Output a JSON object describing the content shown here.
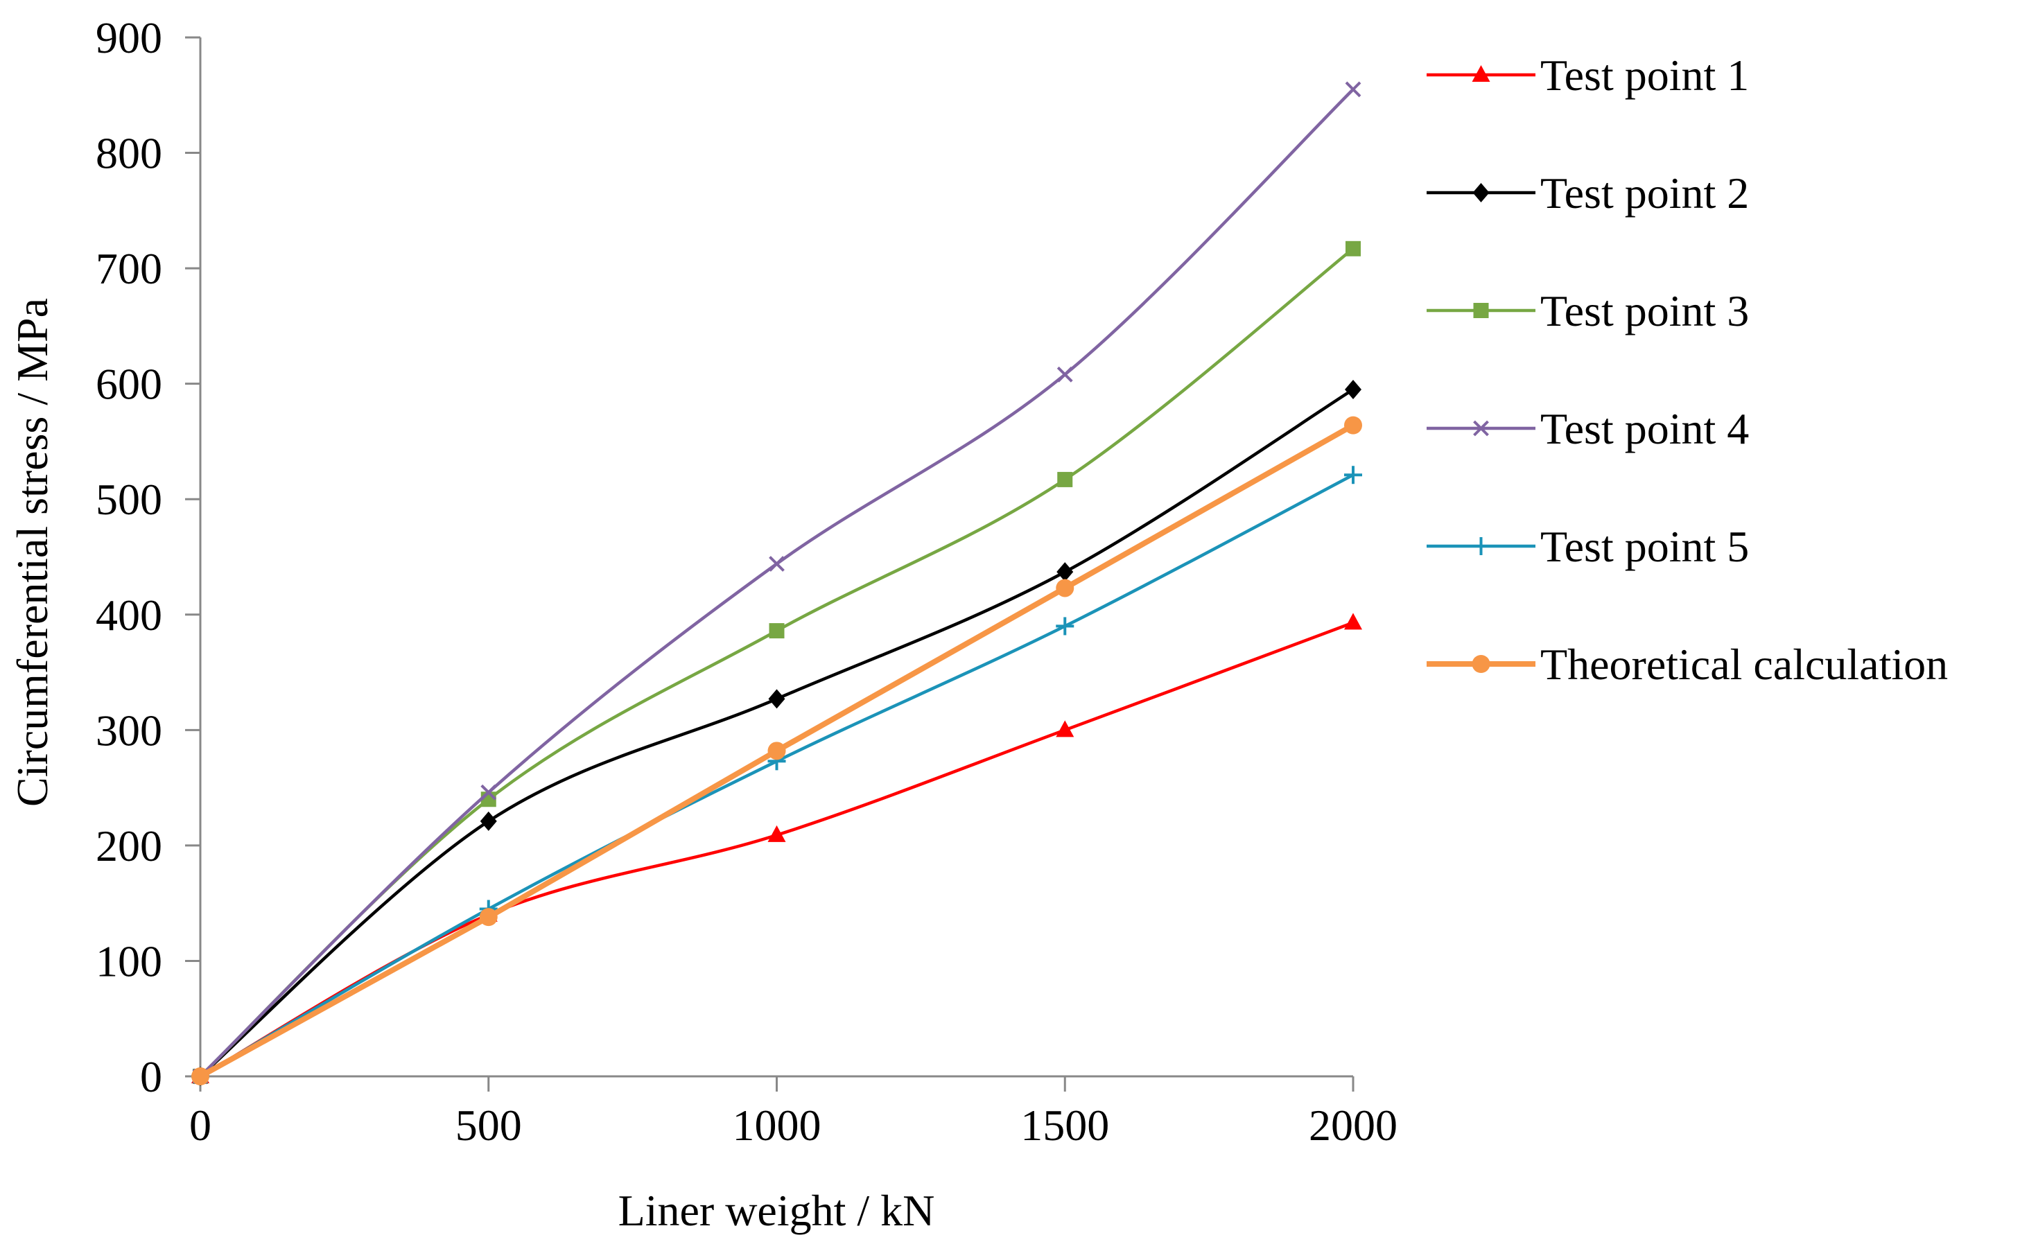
{
  "chart_data": {
    "type": "line",
    "title": "",
    "xlabel": "Liner weight / kN",
    "ylabel": "Circumferential stress / MPa",
    "x": [
      0,
      500,
      1000,
      1500,
      2000
    ],
    "xlim": [
      0,
      2000
    ],
    "ylim": [
      0,
      900
    ],
    "x_ticks": [
      "0",
      "500",
      "1000",
      "1500",
      "2000"
    ],
    "y_ticks": [
      "0",
      "100",
      "200",
      "300",
      "400",
      "500",
      "600",
      "700",
      "800",
      "900"
    ],
    "legend_position": "right",
    "grid": false,
    "series": [
      {
        "name": "Test point 1",
        "color": "#ff0000",
        "marker": "triangle",
        "values": [
          0,
          140,
          209,
          300,
          393
        ]
      },
      {
        "name": "Test point 2",
        "color": "#000000",
        "marker": "diamond",
        "values": [
          0,
          221,
          327,
          437,
          595
        ]
      },
      {
        "name": "Test point 3",
        "color": "#77a743",
        "marker": "square",
        "values": [
          0,
          240,
          386,
          517,
          717
        ]
      },
      {
        "name": "Test point 4",
        "color": "#8064a2",
        "marker": "x",
        "values": [
          0,
          246,
          444,
          608,
          855
        ]
      },
      {
        "name": "Test point 5",
        "color": "#1b93b8",
        "marker": "plus",
        "values": [
          0,
          145,
          273,
          390,
          521
        ]
      },
      {
        "name": "Theoretical calculation",
        "color": "#f79646",
        "marker": "circle",
        "values": [
          0,
          138,
          282,
          423,
          564
        ]
      }
    ]
  }
}
